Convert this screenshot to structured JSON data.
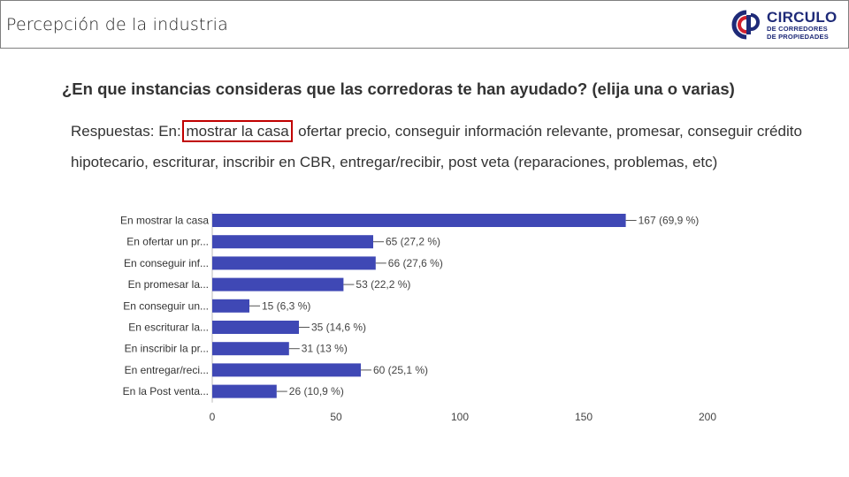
{
  "header": {
    "title": "Percepción de la industria"
  },
  "logo": {
    "main": "CIRCULO",
    "line1": "DE CORREDORES",
    "line2": "DE PROPIEDADES"
  },
  "question": "¿En que instancias consideras que las corredoras te han ayudado? (elija una o varias)",
  "answers": {
    "prefix": "Respuestas: En:",
    "highlighted": "mostrar la casa",
    "rest": ", ofertar precio, conseguir información relevante, promesar, conseguir crédito hipotecario, escriturar, inscribir en CBR, entregar/recibir, post veta (reparaciones, problemas, etc)"
  },
  "colors": {
    "bar": "#3f48b5",
    "accent": "#c00000",
    "brand": "#1e2a78"
  },
  "chart_data": {
    "type": "bar",
    "orientation": "horizontal",
    "categories": [
      "En mostrar la casa",
      "En ofertar un pr...",
      "En conseguir inf...",
      "En promesar la...",
      "En conseguir un...",
      "En escriturar la...",
      "En inscribir la pr...",
      "En entregar/reci...",
      "En la Post venta..."
    ],
    "values": [
      167,
      65,
      66,
      53,
      15,
      35,
      31,
      60,
      26
    ],
    "value_labels": [
      "167 (69,9 %)",
      "65 (27,2 %)",
      "66 (27,6 %)",
      "53 (22,2 %)",
      "15 (6,3 %)",
      "35 (14,6 %)",
      "31 (13 %)",
      "60 (25,1 %)",
      "26 (10,9 %)"
    ],
    "xticks": [
      0,
      50,
      100,
      150,
      200
    ],
    "xlim": [
      0,
      200
    ],
    "grid": false
  }
}
